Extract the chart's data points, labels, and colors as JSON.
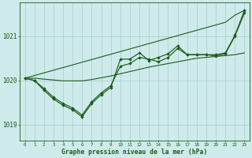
{
  "title": "Graphe pression niveau de la mer (hPa)",
  "xlabel_ticks": [
    0,
    1,
    2,
    3,
    4,
    5,
    6,
    7,
    8,
    9,
    10,
    11,
    12,
    13,
    14,
    15,
    16,
    17,
    18,
    19,
    20,
    21,
    22,
    23
  ],
  "yticks": [
    1019,
    1020,
    1021
  ],
  "ylim": [
    1018.65,
    1021.75
  ],
  "xlim": [
    -0.5,
    23.5
  ],
  "bg_color": "#ceeaea",
  "grid_color": "#aacccc",
  "line_color": "#1a5c1a",
  "trend": [
    1020.05,
    1020.11,
    1020.17,
    1020.23,
    1020.29,
    1020.35,
    1020.41,
    1020.47,
    1020.53,
    1020.59,
    1020.65,
    1020.71,
    1020.77,
    1020.83,
    1020.89,
    1020.95,
    1021.01,
    1021.07,
    1021.13,
    1021.19,
    1021.25,
    1021.31,
    1021.47,
    1021.58
  ],
  "smooth": [
    1020.05,
    1020.05,
    1020.03,
    1020.01,
    1019.99,
    1019.99,
    1019.99,
    1020.02,
    1020.06,
    1020.1,
    1020.15,
    1020.2,
    1020.25,
    1020.3,
    1020.34,
    1020.38,
    1020.42,
    1020.46,
    1020.5,
    1020.52,
    1020.54,
    1020.56,
    1020.58,
    1020.62
  ],
  "line_jagged1": [
    1020.05,
    1020.0,
    1019.82,
    1019.62,
    1019.48,
    1019.38,
    1019.22,
    1019.52,
    1019.72,
    1019.88,
    1020.32,
    1020.38,
    1020.52,
    1020.48,
    1020.42,
    1020.52,
    1020.72,
    1020.58,
    1020.58,
    1020.58,
    1020.55,
    1020.6,
    1021.0,
    1021.52
  ],
  "line_jagged2": [
    1020.05,
    1020.0,
    1019.78,
    1019.58,
    1019.44,
    1019.34,
    1019.18,
    1019.48,
    1019.68,
    1019.84,
    1020.48,
    1020.48,
    1020.62,
    1020.45,
    1020.52,
    1020.6,
    1020.78,
    1020.58,
    1020.58,
    1020.58,
    1020.58,
    1020.62,
    1021.02,
    1021.58
  ]
}
